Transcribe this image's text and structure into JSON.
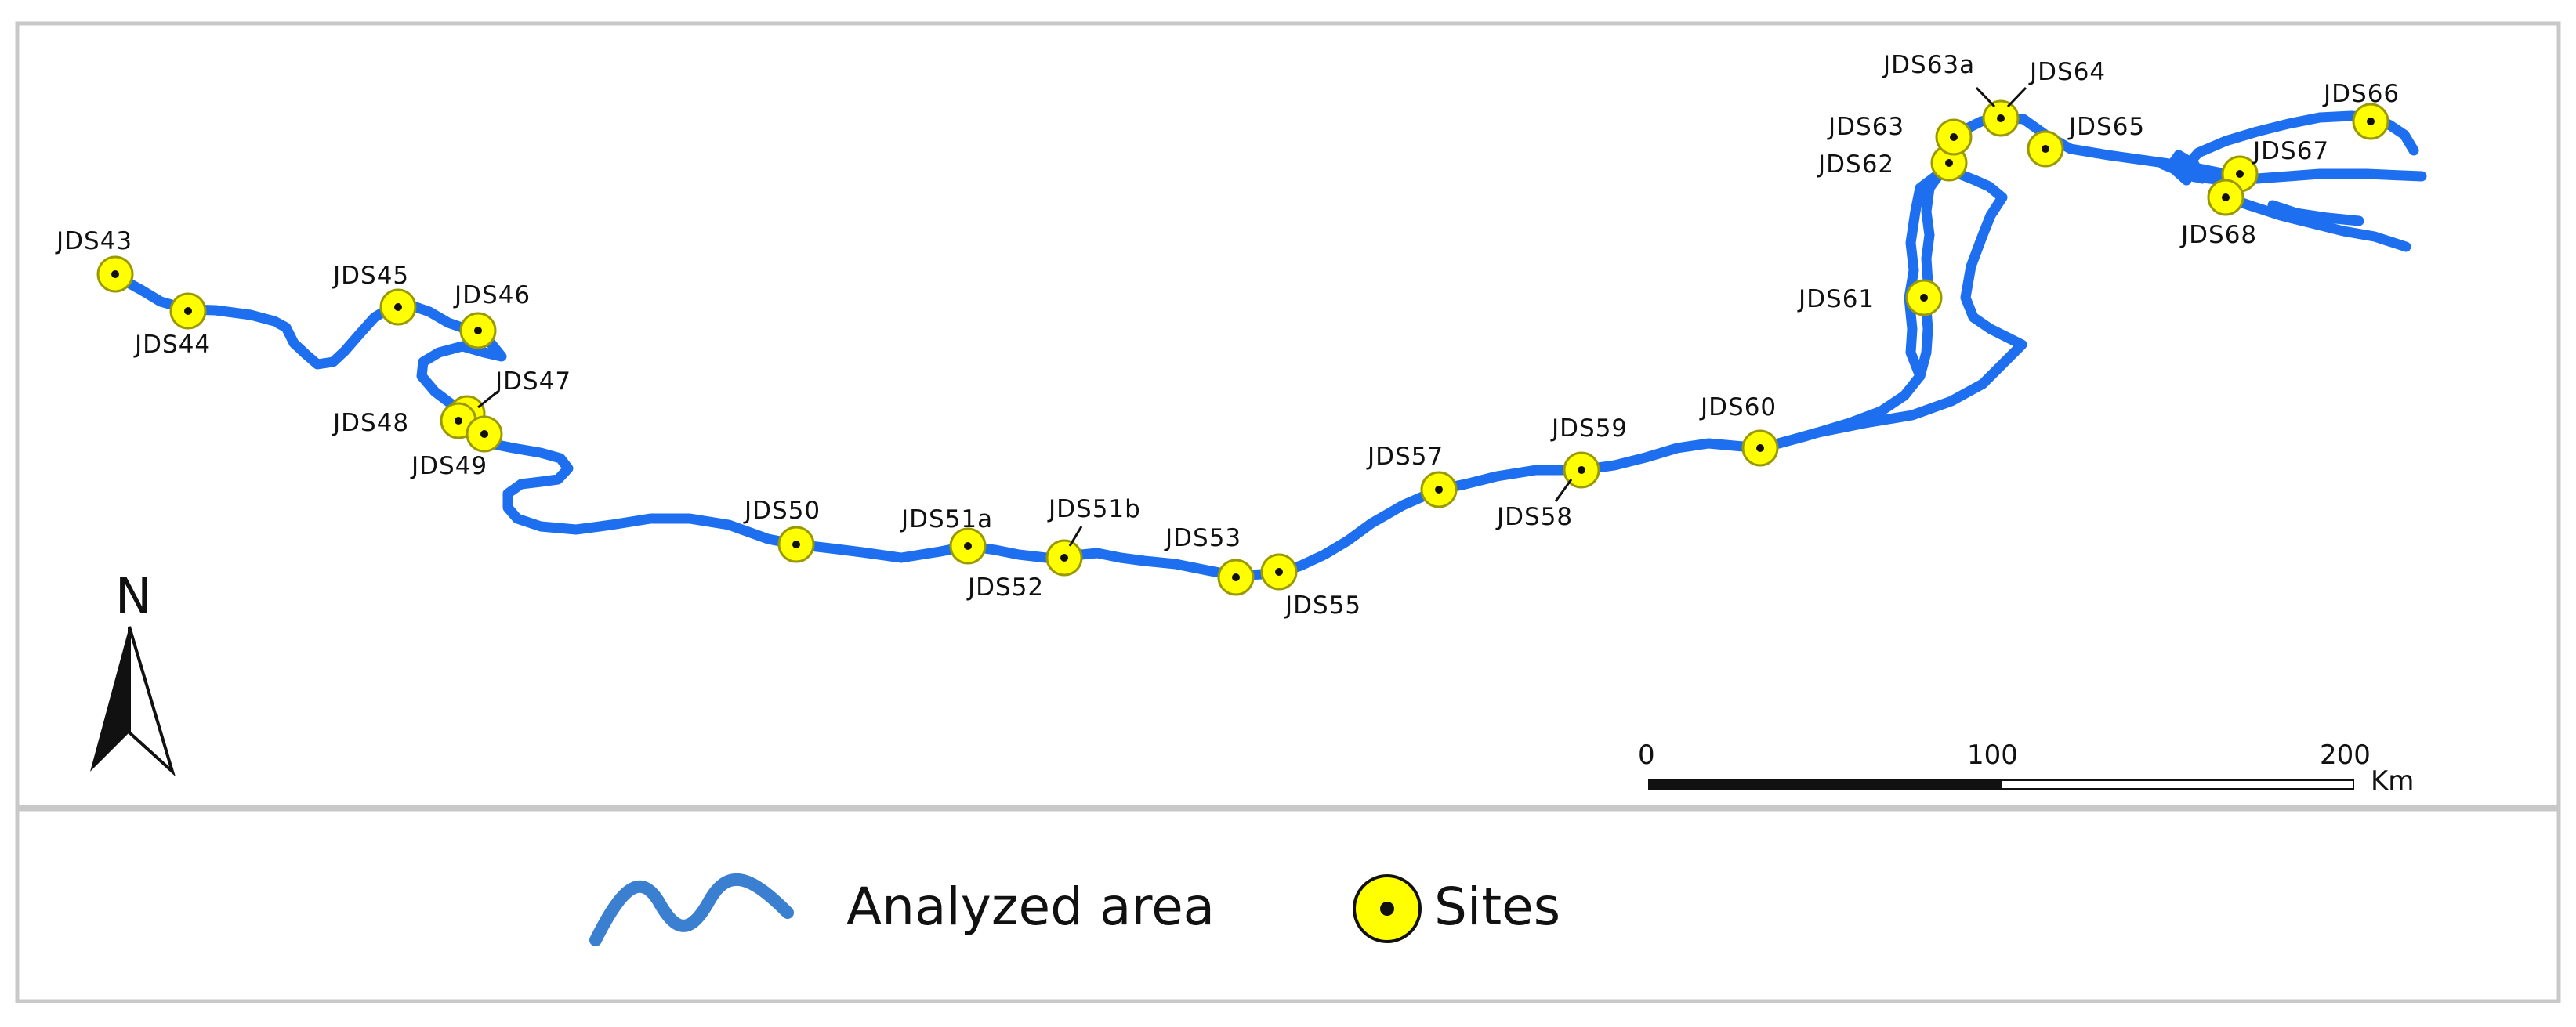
{
  "map": {
    "north_label": "N",
    "scale_bar": {
      "ticks": [
        "0",
        "100",
        "200"
      ],
      "unit": "Km"
    },
    "sites": [
      {
        "label": "JDS43"
      },
      {
        "label": "JDS44"
      },
      {
        "label": "JDS45"
      },
      {
        "label": "JDS46"
      },
      {
        "label": "JDS47"
      },
      {
        "label": "JDS48"
      },
      {
        "label": "JDS49"
      },
      {
        "label": "JDS50"
      },
      {
        "label": "JDS51a"
      },
      {
        "label": "JDS51b"
      },
      {
        "label": "JDS52"
      },
      {
        "label": "JDS53"
      },
      {
        "label": "JDS55"
      },
      {
        "label": "JDS57"
      },
      {
        "label": "JDS58"
      },
      {
        "label": "JDS59"
      },
      {
        "label": "JDS60"
      },
      {
        "label": "JDS61"
      },
      {
        "label": "JDS62"
      },
      {
        "label": "JDS63"
      },
      {
        "label": "JDS63a"
      },
      {
        "label": "JDS64"
      },
      {
        "label": "JDS65"
      },
      {
        "label": "JDS66"
      },
      {
        "label": "JDS67"
      },
      {
        "label": "JDS68"
      }
    ]
  },
  "legend": {
    "items": [
      {
        "label": "Analyzed area",
        "symbol": "river-line",
        "color": "#3a7fd0"
      },
      {
        "label": "Sites",
        "symbol": "site-marker",
        "color": "#ffff00"
      }
    ]
  },
  "colors": {
    "river": "#1e6ff0",
    "site_fill": "#ffff00",
    "site_outline": "#a0a000",
    "frame": "#c0c0c0"
  }
}
